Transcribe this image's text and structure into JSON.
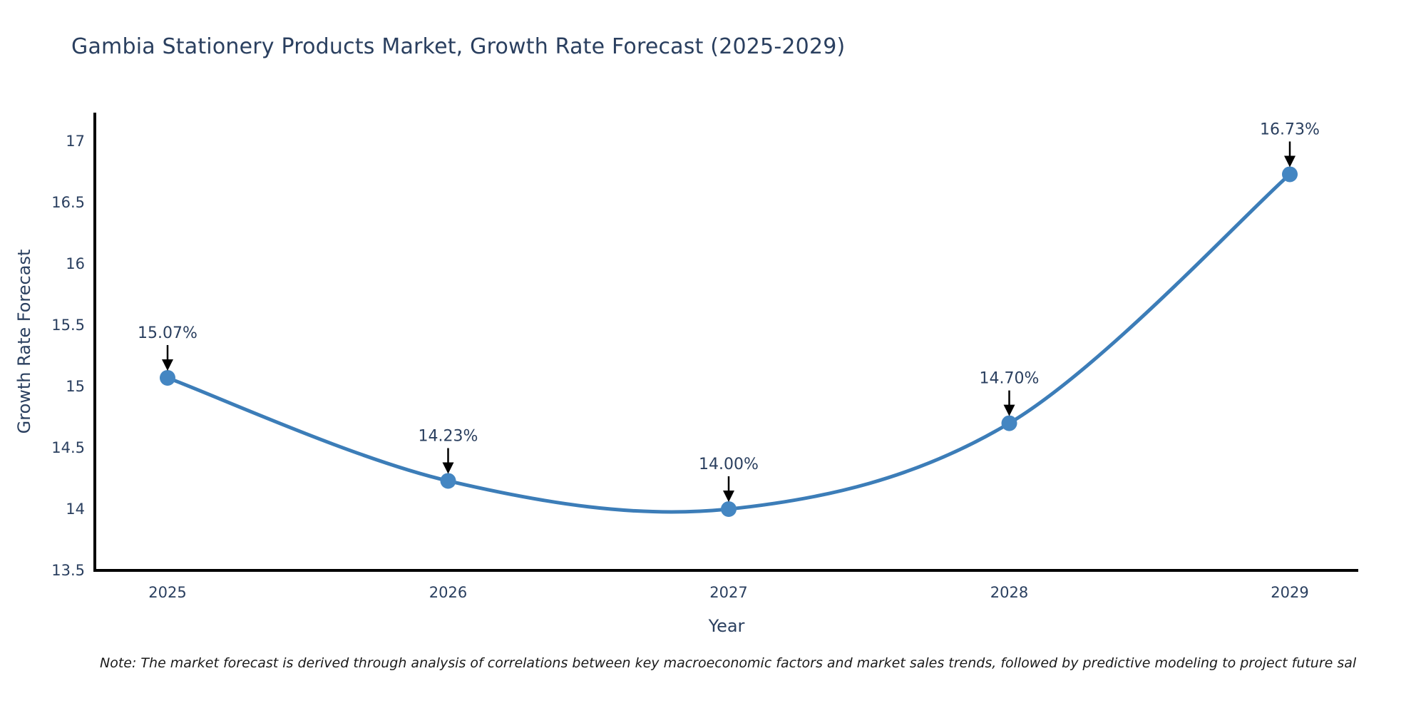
{
  "header": {
    "title": "Gambia Stationery Products Market, Growth Rate Forecast (2025-2029)"
  },
  "chart_data": {
    "type": "line",
    "title": "Gambia Stationery Products Market, Growth Rate Forecast (2025-2029)",
    "categories": [
      "2025",
      "2026",
      "2027",
      "2028",
      "2029"
    ],
    "values": [
      15.07,
      14.23,
      14.0,
      14.7,
      16.73
    ],
    "point_labels": [
      "15.07%",
      "14.23%",
      "14.00%",
      "14.70%",
      "16.73%"
    ],
    "xlabel": "Year",
    "ylabel": "Growth Rate Forecast",
    "ylim": [
      13.5,
      17.25
    ],
    "yticks": [
      13.5,
      14,
      14.5,
      15,
      15.5,
      16,
      16.5,
      17
    ],
    "ytick_labels": [
      "13.5",
      "14",
      "14.5",
      "15",
      "15.5",
      "16",
      "16.5",
      "17"
    ],
    "grid": false,
    "legend_position": "none",
    "line_shape": "spline",
    "colors": {
      "line": "#3c7db8",
      "marker": "#4486c2",
      "arrow": "#000000",
      "axis": "#000000",
      "text": "#2a3f5f"
    }
  },
  "footnote": {
    "text": "Note: The market forecast is derived through analysis of correlations between key macroeconomic factors and market sales trends, followed by predictive modeling to project future sal"
  }
}
